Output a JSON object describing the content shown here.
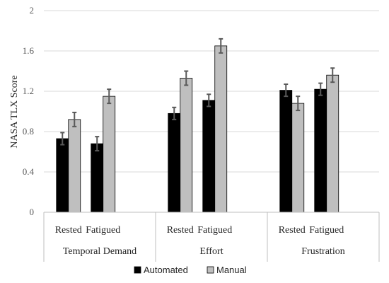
{
  "chart_data": {
    "type": "bar",
    "ylabel": "NASA TLX Score",
    "ylim": [
      0,
      2
    ],
    "yticks": [
      0,
      0.4,
      0.8,
      1.2,
      1.6,
      2
    ],
    "ytick_labels": [
      "0",
      "0.4",
      "0.8",
      "1.2",
      "1.6",
      "2"
    ],
    "grid": true,
    "legend_position": "bottom",
    "groups": [
      {
        "name": "Temporal Demand",
        "categories": [
          {
            "name": "Rested",
            "values": [
              0.73,
              0.92
            ],
            "errors": [
              0.06,
              0.07
            ]
          },
          {
            "name": "Fatigued",
            "values": [
              0.68,
              1.15
            ],
            "errors": [
              0.07,
              0.07
            ]
          }
        ]
      },
      {
        "name": "Effort",
        "categories": [
          {
            "name": "Rested",
            "values": [
              0.98,
              1.33
            ],
            "errors": [
              0.06,
              0.07
            ]
          },
          {
            "name": "Fatigued",
            "values": [
              1.11,
              1.65
            ],
            "errors": [
              0.06,
              0.07
            ]
          }
        ]
      },
      {
        "name": "Frustration",
        "categories": [
          {
            "name": "Rested",
            "values": [
              1.21,
              1.08
            ],
            "errors": [
              0.06,
              0.07
            ]
          },
          {
            "name": "Fatigued",
            "values": [
              1.22,
              1.36
            ],
            "errors": [
              0.06,
              0.07
            ]
          }
        ]
      }
    ],
    "series": [
      {
        "name": "Automated",
        "color": "#000000"
      },
      {
        "name": "Manual",
        "color": "#bfbfbf"
      }
    ]
  }
}
